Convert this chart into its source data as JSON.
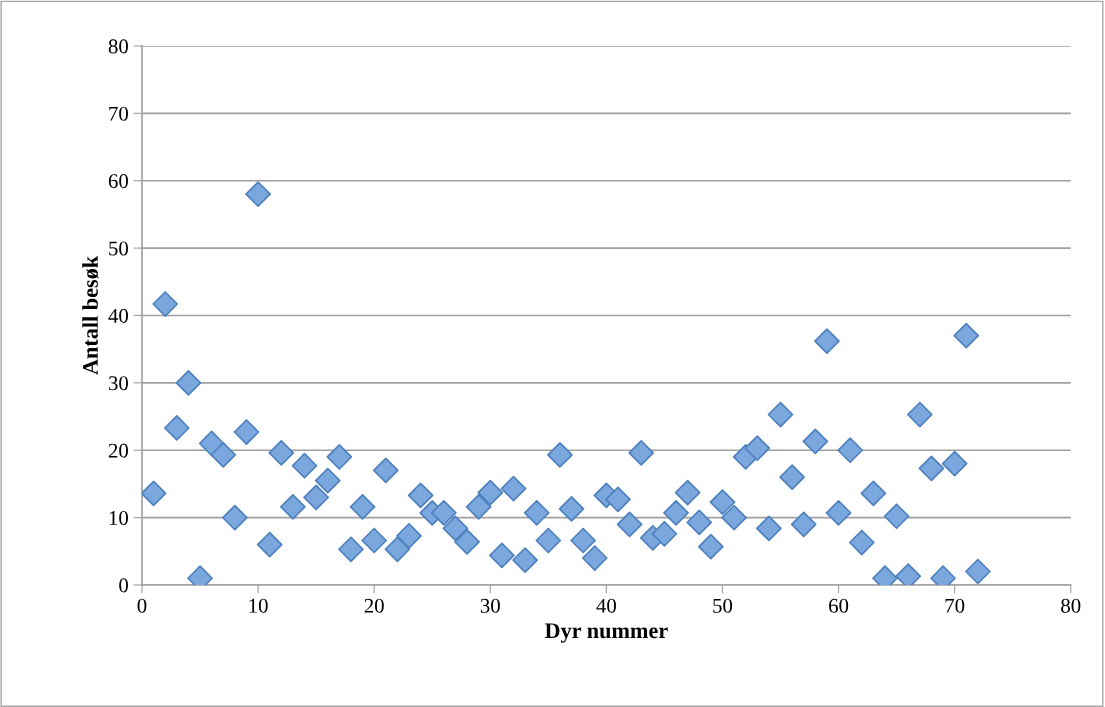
{
  "chart_data": {
    "type": "scatter",
    "xlabel": "Dyr nummer",
    "ylabel": "Antall besøk",
    "x": [
      1,
      2,
      3,
      4,
      5,
      6,
      7,
      8,
      9,
      10,
      11,
      12,
      13,
      14,
      15,
      16,
      17,
      18,
      19,
      20,
      21,
      22,
      23,
      24,
      25,
      26,
      27,
      28,
      29,
      30,
      31,
      32,
      33,
      34,
      35,
      36,
      37,
      38,
      39,
      40,
      41,
      42,
      43,
      44,
      45,
      46,
      47,
      48,
      49,
      50,
      51,
      52,
      53,
      54,
      55,
      56,
      57,
      58,
      59,
      60,
      61,
      62,
      63,
      64,
      65,
      66,
      67,
      68,
      69,
      70,
      71,
      72
    ],
    "series": [
      {
        "color": "#7aa7dd",
        "values": [
          13.6,
          41.7,
          23.3,
          30,
          1,
          21,
          19.3,
          10,
          22.7,
          58,
          6,
          19.6,
          11.6,
          17.7,
          13,
          15.5,
          19,
          5.3,
          11.6,
          6.6,
          17,
          5.3,
          7.3,
          13.3,
          10.7,
          10.7,
          8.4,
          6.4,
          11.6,
          13.7,
          4.4,
          14.3,
          3.7,
          10.7,
          6.6,
          19.3,
          11.3,
          6.6,
          4,
          13.3,
          12.7,
          9,
          19.6,
          7,
          7.6,
          10.7,
          13.7,
          9.3,
          5.7,
          12.3,
          10,
          19,
          20.3,
          8.4,
          25.3,
          16,
          9,
          21.3,
          36.2,
          10.7,
          20,
          6.3,
          13.6,
          1,
          10.2,
          1.3,
          25.3,
          17.3,
          1,
          18,
          37,
          2
        ]
      }
    ],
    "xlim": [
      0,
      80
    ],
    "xticks": [
      0,
      10,
      20,
      30,
      40,
      50,
      60,
      70,
      80
    ],
    "ylim": [
      0,
      80
    ],
    "yticks": [
      0,
      10,
      20,
      30,
      40,
      50,
      60,
      70,
      80
    ],
    "grid": "y",
    "marker": "diamond"
  }
}
